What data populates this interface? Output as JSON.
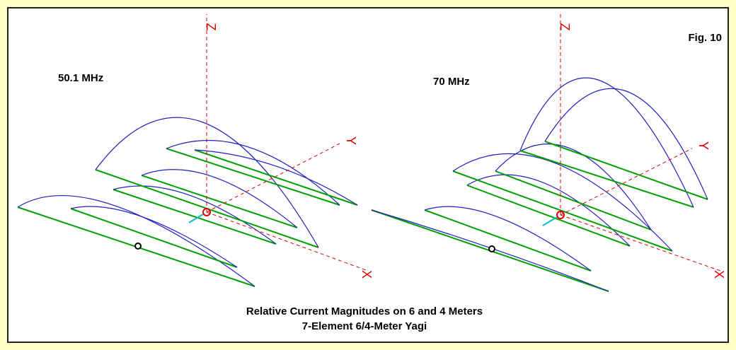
{
  "figure": {
    "label": "Fig. 10",
    "panels": [
      {
        "label": "50.1 MHz"
      },
      {
        "label": "70 MHz"
      }
    ],
    "axis_labels": {
      "z": "Z",
      "y": "Y",
      "x": "X"
    },
    "caption": [
      "Relative Current Magnitudes on 6 and 4 Meters",
      "7-Element 6/4-Meter Yagi"
    ]
  }
}
